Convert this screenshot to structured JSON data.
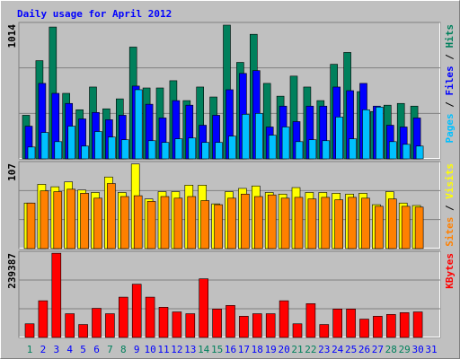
{
  "chart_data": {
    "type": "bar",
    "title": "Daily usage for April 2012",
    "categories": [
      "1",
      "2",
      "3",
      "4",
      "5",
      "6",
      "7",
      "8",
      "9",
      "10",
      "11",
      "12",
      "13",
      "14",
      "15",
      "16",
      "17",
      "18",
      "19",
      "20",
      "21",
      "22",
      "23",
      "24",
      "25",
      "26",
      "27",
      "28",
      "29",
      "30",
      "31"
    ],
    "category_color": "#0000ff",
    "highlight_color": "#00805c",
    "highlight_indices": [
      0,
      6,
      7,
      13,
      14,
      20,
      21,
      27,
      28
    ],
    "legend_separator": " / ",
    "grid_divisions": 3,
    "panels": [
      {
        "ylim": [
          0,
          1014
        ],
        "yticks": [
          1014
        ],
        "series": [
          {
            "name": "Hits",
            "color": "#00805c",
            "values": [
              324,
              730,
              980,
              487,
              365,
              534,
              372,
              446,
              831,
              527,
              527,
              581,
              433,
              534,
              460,
              994,
              717,
              926,
              561,
              466,
              615,
              534,
              433,
              703,
              791,
              500,
              352,
              399,
              412,
              392,
              null
            ]
          },
          {
            "name": "Files",
            "color": "#0000ff",
            "values": [
              243,
              561,
              487,
              412,
              297,
              345,
              291,
              324,
              541,
              406,
              304,
              433,
              399,
              250,
              324,
              514,
              635,
              656,
              237,
              392,
              277,
              392,
              392,
              534,
              507,
              561,
              392,
              250,
              237,
              304,
              null
            ]
          },
          {
            "name": "Pages",
            "color": "#00c0ff",
            "values": [
              88,
              196,
              128,
              243,
              95,
              203,
              162,
              142,
              514,
              135,
              122,
              149,
              155,
              122,
              122,
              169,
              331,
              338,
              176,
              237,
              128,
              142,
              135,
              311,
              149,
              365,
              385,
              128,
              108,
              95,
              null
            ]
          }
        ]
      },
      {
        "ylim": [
          0,
          107
        ],
        "yticks": [
          107
        ],
        "series": [
          {
            "name": "Visits",
            "color": "#ffff00",
            "values": [
              56,
              79,
              76,
              82,
              72,
              69,
              88,
              69,
              104,
              61,
              70,
              70,
              78,
              78,
              55,
              70,
              74,
              77,
              69,
              67,
              75,
              69,
              69,
              68,
              67,
              68,
              54,
              70,
              56,
              53,
              null
            ]
          },
          {
            "name": "Sites",
            "color": "#ff8000",
            "values": [
              56,
              71,
              70,
              73,
              68,
              62,
              80,
              64,
              65,
              58,
              64,
              62,
              64,
              59,
              54,
              62,
              67,
              64,
              66,
              62,
              63,
              61,
              63,
              60,
              63,
              62,
              52,
              61,
              52,
              51,
              null
            ]
          }
        ]
      },
      {
        "ylim": [
          0,
          239387
        ],
        "yticks": [
          239387
        ],
        "series": [
          {
            "name": "KBytes",
            "color": "#ff0000",
            "values": [
              38000,
              102000,
              234000,
              66000,
              36000,
              81000,
              66000,
              112000,
              148000,
              112000,
              84000,
              71000,
              66000,
              163000,
              79000,
              89000,
              59000,
              66000,
              66000,
              102000,
              38000,
              94000,
              36000,
              79000,
              79000,
              51000,
              59000,
              64000,
              69000,
              71000,
              null
            ]
          }
        ]
      }
    ]
  }
}
